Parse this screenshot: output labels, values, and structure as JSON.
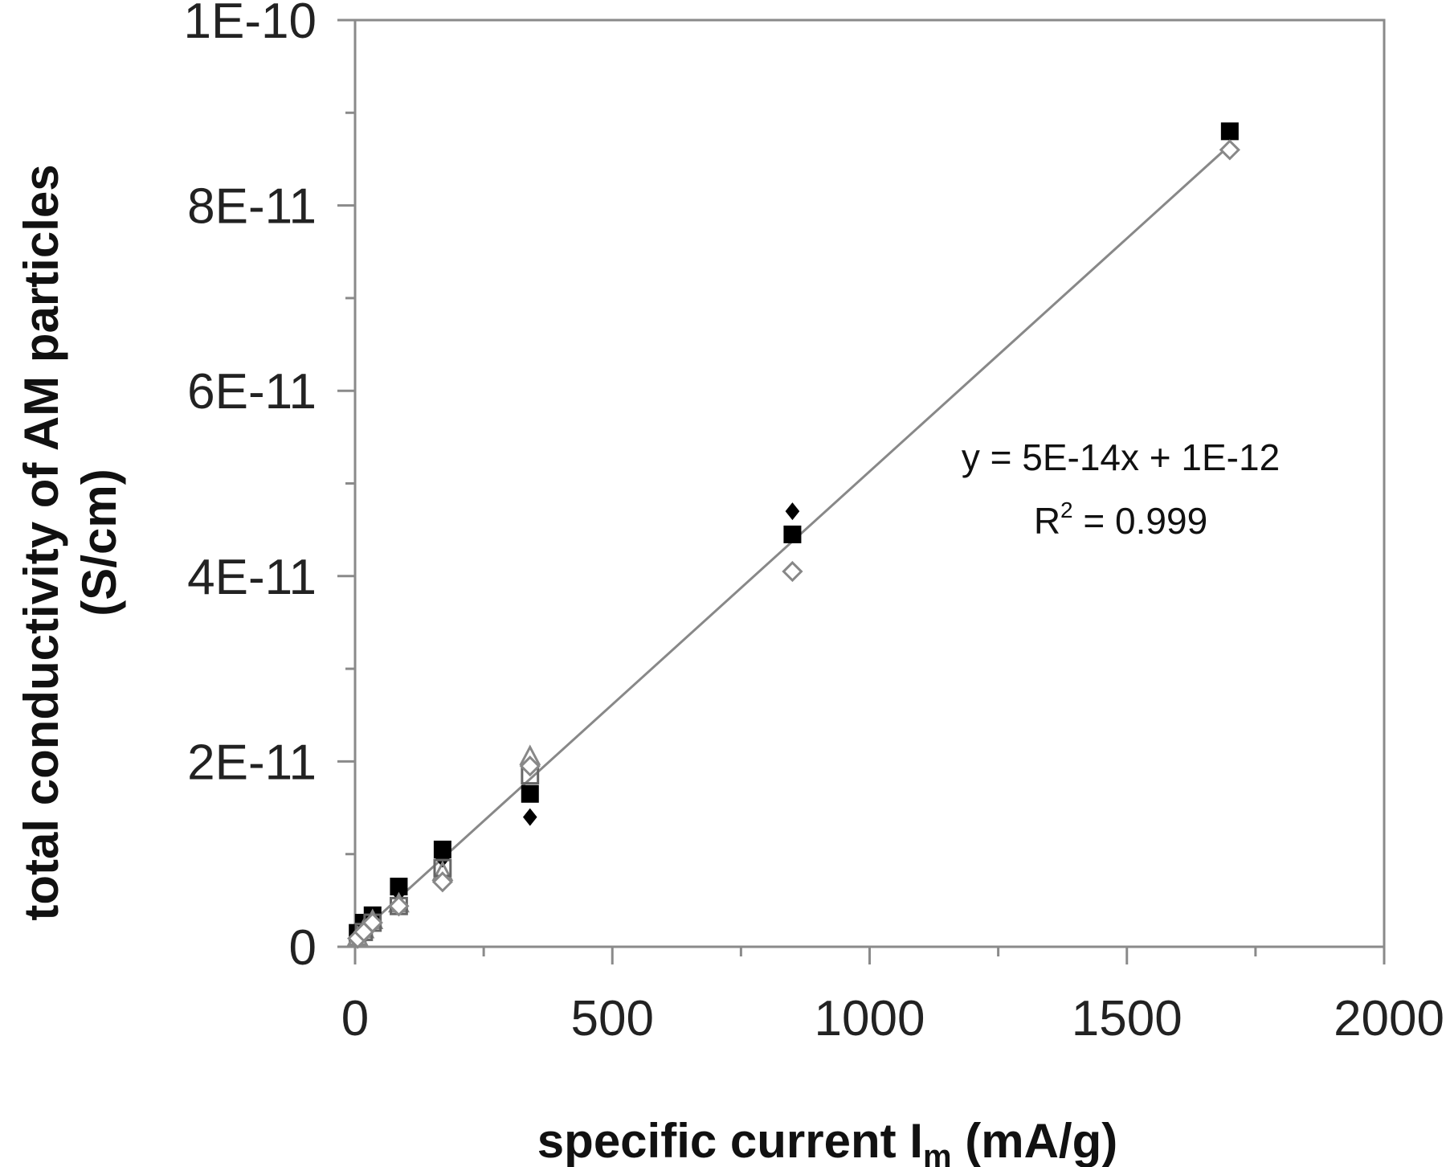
{
  "chart_data": {
    "type": "scatter",
    "title": "",
    "xlabel": {
      "main": "specific current I",
      "sub": "m",
      "unit": " (mA/g)"
    },
    "ylabel": {
      "line1": "total conductivity of AM particles",
      "line2": "(S/cm)"
    },
    "xlim": [
      0,
      2000
    ],
    "ylim": [
      0,
      1e-10
    ],
    "x_ticks": [
      0,
      500,
      1000,
      1500,
      2000
    ],
    "x_tick_labels": [
      "0",
      "500",
      "1000",
      "1500",
      "2000"
    ],
    "y_ticks": [
      0,
      2e-11,
      4e-11,
      6e-11,
      8e-11,
      1e-10
    ],
    "y_tick_labels": [
      "0",
      "2E-11",
      "4E-11",
      "6E-11",
      "8E-11",
      "1E-10"
    ],
    "grid": false,
    "series": [
      {
        "marker": "filled-diamond",
        "color": "#000000",
        "points": [
          [
            5,
            1.2e-12
          ],
          [
            17,
            2.2e-12
          ],
          [
            34,
            3.2e-12
          ],
          [
            85,
            5.8e-12
          ],
          [
            170,
            9.5e-12
          ],
          [
            340,
            1.4e-11
          ],
          [
            850,
            4.7e-11
          ],
          [
            1700,
            8.8e-11
          ]
        ]
      },
      {
        "marker": "filled-square",
        "color": "#000000",
        "points": [
          [
            5,
            1.5e-12
          ],
          [
            17,
            2.6e-12
          ],
          [
            34,
            3.4e-12
          ],
          [
            85,
            6.5e-12
          ],
          [
            170,
            1.05e-11
          ],
          [
            340,
            1.65e-11
          ],
          [
            850,
            4.45e-11
          ],
          [
            1700,
            8.8e-11
          ]
        ]
      },
      {
        "marker": "open-triangle",
        "color": "#888888",
        "points": [
          [
            5,
            1e-12
          ],
          [
            17,
            1.8e-12
          ],
          [
            34,
            2.8e-12
          ],
          [
            85,
            4.6e-12
          ],
          [
            170,
            8e-12
          ],
          [
            340,
            2.05e-11
          ]
        ]
      },
      {
        "marker": "open-square",
        "color": "#666666",
        "points": [
          [
            17,
            1.6e-12
          ],
          [
            34,
            2.6e-12
          ],
          [
            85,
            4.4e-12
          ],
          [
            170,
            8.5e-12
          ],
          [
            340,
            1.85e-11
          ]
        ]
      },
      {
        "marker": "open-diamond",
        "color": "#888888",
        "points": [
          [
            5,
            9e-13
          ],
          [
            17,
            1.6e-12
          ],
          [
            34,
            2.6e-12
          ],
          [
            85,
            4.4e-12
          ],
          [
            170,
            7e-12
          ],
          [
            340,
            1.95e-11
          ],
          [
            850,
            4.05e-11
          ],
          [
            1700,
            8.6e-11
          ]
        ]
      }
    ],
    "trendline": {
      "x": [
        0,
        1700
      ],
      "y": [
        1e-12,
        8.65e-11
      ],
      "color": "#888888"
    },
    "annotation": {
      "equation": "y = 5E-14x + 1E-12",
      "r2_prefix": "R",
      "r2_sup": "2",
      "r2_value": " = 0.999"
    }
  }
}
